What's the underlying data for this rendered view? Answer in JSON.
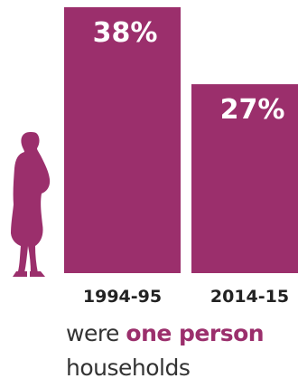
{
  "chart_data": {
    "type": "bar",
    "categories": [
      "1994-95",
      "2014-15"
    ],
    "values": [
      38,
      27
    ],
    "value_labels": [
      "38%",
      "27%"
    ],
    "title": "",
    "xlabel": "",
    "ylabel": "",
    "ylim": [
      0,
      38
    ],
    "grid": false,
    "legend": "none",
    "bar_color": "#9b2f6c"
  },
  "caption": {
    "pre": "were ",
    "highlight": "one person",
    "post": "households"
  },
  "icons": {
    "figure": "person-silhouette-icon"
  },
  "colors": {
    "accent": "#9b2f6c",
    "text": "#333333"
  }
}
